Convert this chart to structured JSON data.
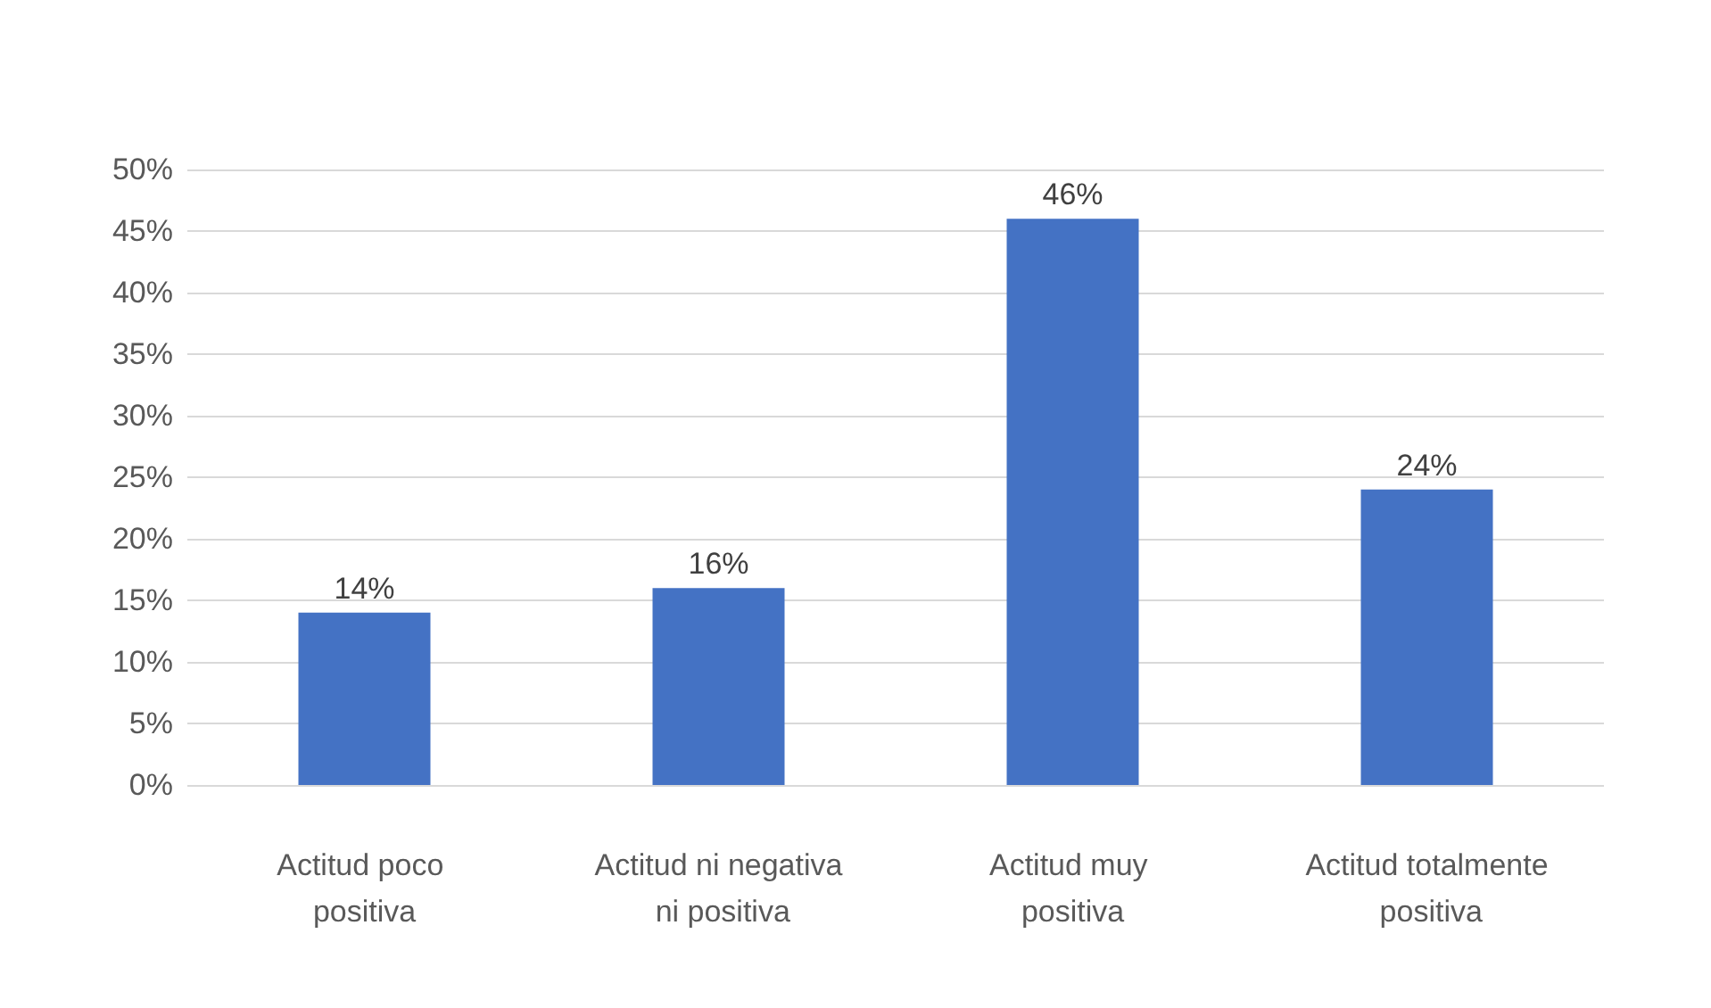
{
  "chart_data": {
    "type": "bar",
    "categories": [
      "Actitud poco positiva",
      "Actitud ni negativa ni positiva",
      "Actitud muy positiva",
      "Actitud totalmente positiva"
    ],
    "values": [
      14,
      16,
      46,
      24
    ],
    "value_labels": [
      "14%",
      "16%",
      "46%",
      "24%"
    ],
    "color": "#4472c4",
    "ylim": [
      0,
      50
    ],
    "yticks": [
      {
        "value": 0,
        "label": "0%"
      },
      {
        "value": 5,
        "label": "5%"
      },
      {
        "value": 10,
        "label": "10%"
      },
      {
        "value": 15,
        "label": "15%"
      },
      {
        "value": 20,
        "label": "20%"
      },
      {
        "value": 25,
        "label": "25%"
      },
      {
        "value": 30,
        "label": "30%"
      },
      {
        "value": 35,
        "label": "35%"
      },
      {
        "value": 40,
        "label": "40%"
      },
      {
        "value": 45,
        "label": "45%"
      },
      {
        "value": 50,
        "label": "50%"
      }
    ],
    "grid": true
  }
}
